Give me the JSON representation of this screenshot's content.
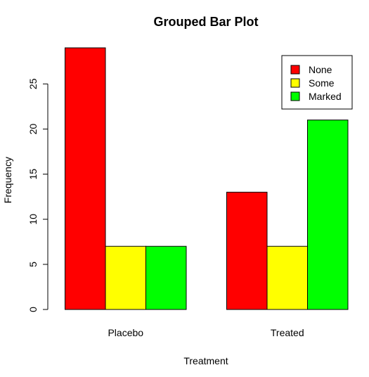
{
  "chart_data": {
    "type": "bar",
    "title": "Grouped Bar Plot",
    "xlabel": "Treatment",
    "ylabel": "Frequency",
    "categories": [
      "Placebo",
      "Treated"
    ],
    "series": [
      {
        "name": "None",
        "values": [
          29,
          13
        ],
        "color": "#ff0000"
      },
      {
        "name": "Some",
        "values": [
          7,
          7
        ],
        "color": "#ffff00"
      },
      {
        "name": "Marked",
        "values": [
          7,
          21
        ],
        "color": "#00ff00"
      }
    ],
    "ylim": [
      0,
      29
    ],
    "yticks": [
      0,
      5,
      10,
      15,
      20,
      25
    ],
    "grid": false,
    "legend_position": "top-right"
  }
}
